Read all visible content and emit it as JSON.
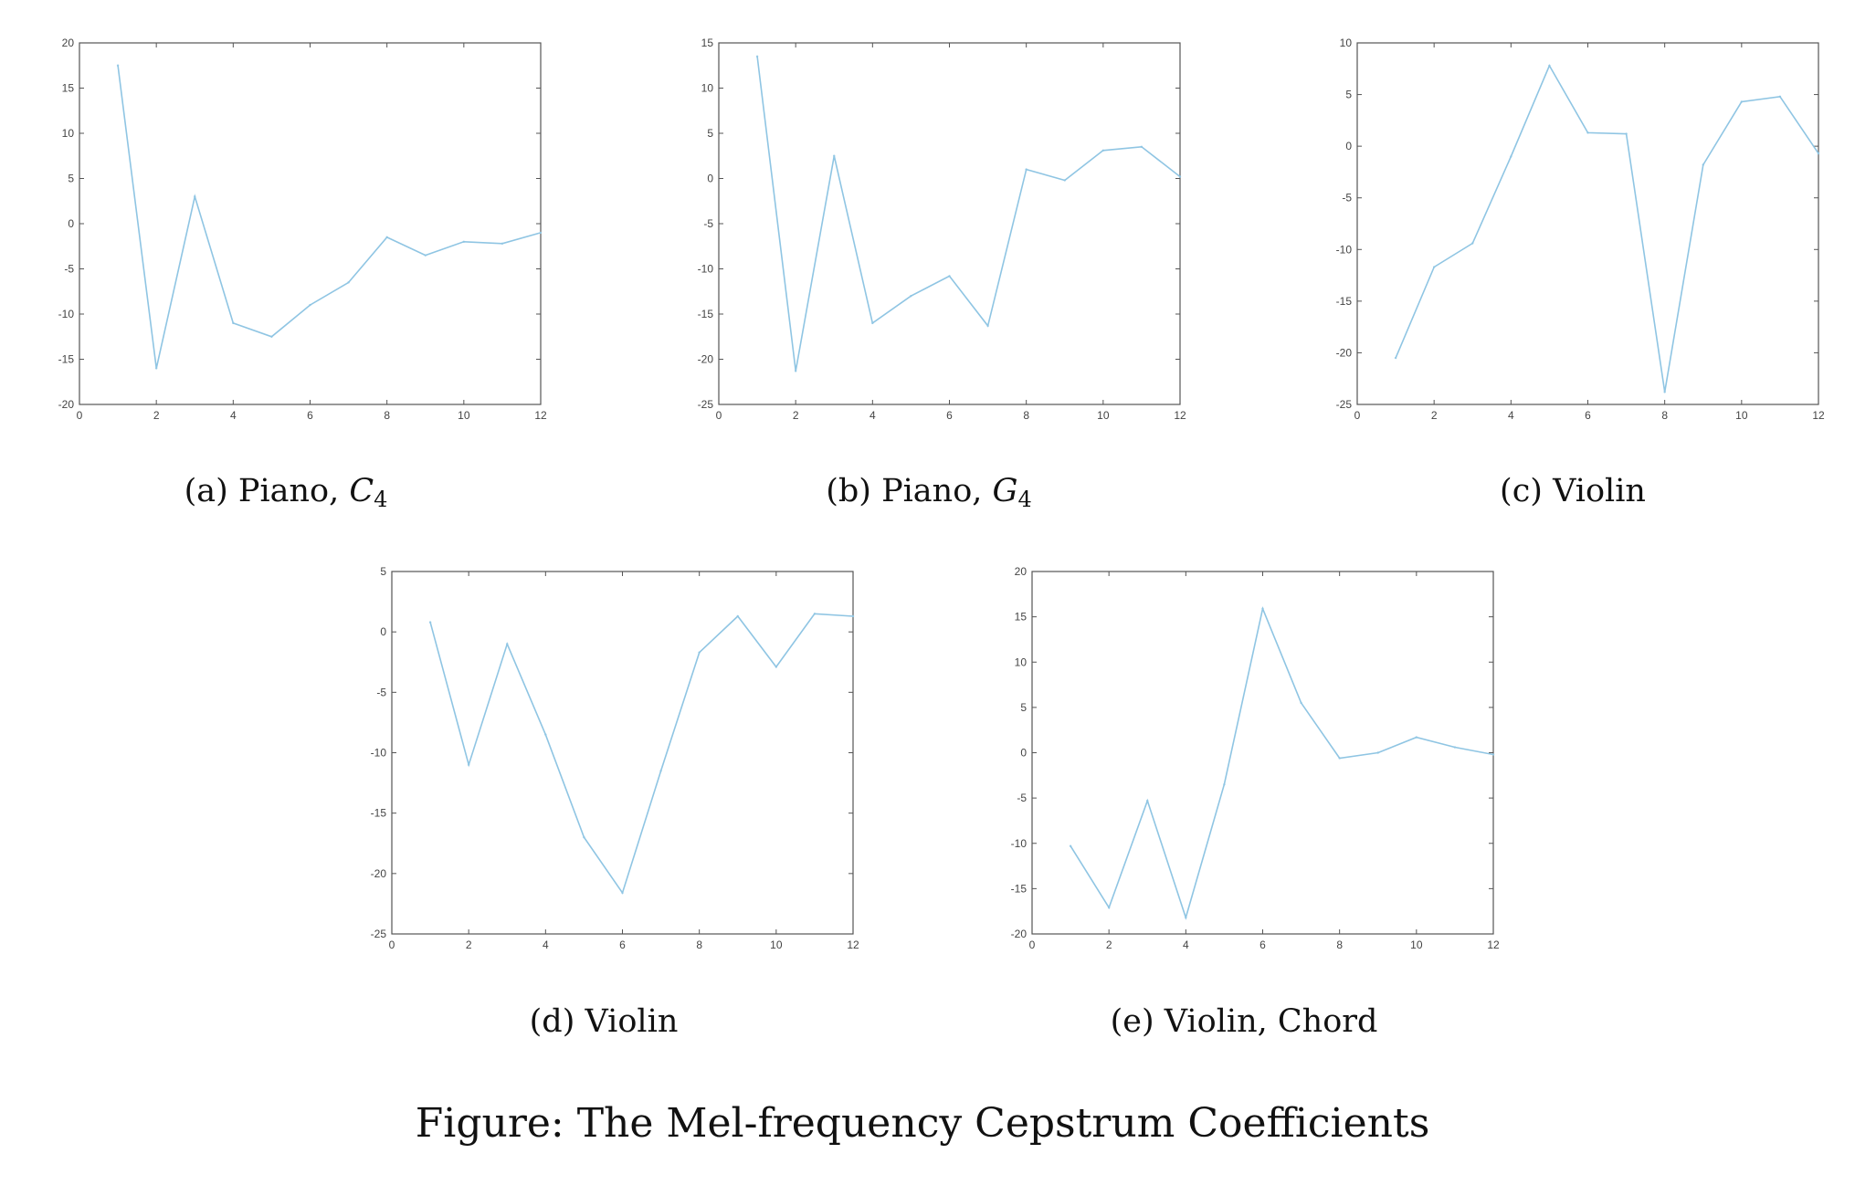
{
  "figure_caption": "Figure: The Mel-frequency Cepstrum Coefficients",
  "line_color": "#8fc5e3",
  "chart_data": [
    {
      "id": "a",
      "type": "line",
      "caption": {
        "label": "(a)",
        "name": "Piano, ",
        "note": "C",
        "sub": "4"
      },
      "xlim": [
        0,
        12
      ],
      "ylim": [
        -20,
        20
      ],
      "xticks": [
        0,
        2,
        4,
        6,
        8,
        10,
        12
      ],
      "yticks": [
        -20,
        -15,
        -10,
        -5,
        0,
        5,
        10,
        15,
        20
      ],
      "x": [
        1,
        2,
        3,
        4,
        5,
        6,
        7,
        8,
        9,
        10,
        11,
        12
      ],
      "y": [
        17.5,
        -16,
        3,
        -11,
        -12.5,
        -9,
        -6.5,
        -1.5,
        -3.5,
        -2,
        -2.2,
        -1
      ]
    },
    {
      "id": "b",
      "type": "line",
      "caption": {
        "label": "(b)",
        "name": "Piano, ",
        "note": "G",
        "sub": "4"
      },
      "xlim": [
        0,
        12
      ],
      "ylim": [
        -25,
        15
      ],
      "xticks": [
        0,
        2,
        4,
        6,
        8,
        10,
        12
      ],
      "yticks": [
        -25,
        -20,
        -15,
        -10,
        -5,
        0,
        5,
        10,
        15
      ],
      "x": [
        1,
        2,
        3,
        4,
        5,
        6,
        7,
        8,
        9,
        10,
        11,
        12
      ],
      "y": [
        13.5,
        -21.3,
        2.5,
        -16,
        -13,
        -10.8,
        -16.3,
        1,
        -0.2,
        3.1,
        3.5,
        0.2
      ]
    },
    {
      "id": "c",
      "type": "line",
      "caption": {
        "label": "(c)",
        "name": "Violin",
        "note": "",
        "sub": ""
      },
      "xlim": [
        0,
        12
      ],
      "ylim": [
        -25,
        10
      ],
      "xticks": [
        0,
        2,
        4,
        6,
        8,
        10,
        12
      ],
      "yticks": [
        -25,
        -20,
        -15,
        -10,
        -5,
        0,
        5,
        10
      ],
      "x": [
        1,
        2,
        3,
        4,
        5,
        6,
        7,
        8,
        9,
        10,
        11,
        12
      ],
      "y": [
        -20.5,
        -11.7,
        -9.4,
        -1,
        7.8,
        1.3,
        1.2,
        -23.8,
        -1.8,
        4.3,
        4.8,
        -0.7
      ]
    },
    {
      "id": "d",
      "type": "line",
      "caption": {
        "label": "(d)",
        "name": "Violin",
        "note": "",
        "sub": ""
      },
      "xlim": [
        0,
        12
      ],
      "ylim": [
        -25,
        5
      ],
      "xticks": [
        0,
        2,
        4,
        6,
        8,
        10,
        12
      ],
      "yticks": [
        -25,
        -20,
        -15,
        -10,
        -5,
        0,
        5
      ],
      "x": [
        1,
        2,
        3,
        4,
        5,
        6,
        7,
        8,
        9,
        10,
        11,
        12
      ],
      "y": [
        0.8,
        -11,
        -1,
        -8.5,
        -17,
        -21.6,
        -11.5,
        -1.7,
        1.3,
        -2.9,
        1.5,
        1.3
      ]
    },
    {
      "id": "e",
      "type": "line",
      "caption": {
        "label": "(e)",
        "name": "Violin, Chord",
        "note": "",
        "sub": ""
      },
      "xlim": [
        0,
        12
      ],
      "ylim": [
        -20,
        20
      ],
      "xticks": [
        0,
        2,
        4,
        6,
        8,
        10,
        12
      ],
      "yticks": [
        -20,
        -15,
        -10,
        -5,
        0,
        5,
        10,
        15,
        20
      ],
      "x": [
        1,
        2,
        3,
        4,
        5,
        6,
        7,
        8,
        9,
        10,
        11,
        12
      ],
      "y": [
        -10.3,
        -17.1,
        -5.3,
        -18.2,
        -3.5,
        15.9,
        5.5,
        -0.6,
        0,
        1.7,
        0.6,
        -0.2
      ]
    }
  ]
}
